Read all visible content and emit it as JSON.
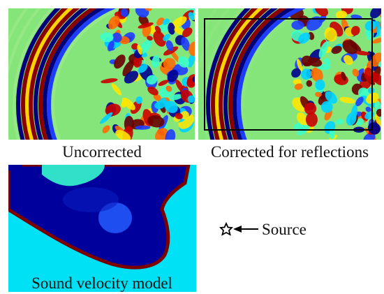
{
  "panels": [
    {
      "caption": "Uncorrected"
    },
    {
      "caption": "Corrected for reflections"
    },
    {
      "caption": "Sound velocity model"
    }
  ],
  "legend": {
    "label": "Source"
  }
}
